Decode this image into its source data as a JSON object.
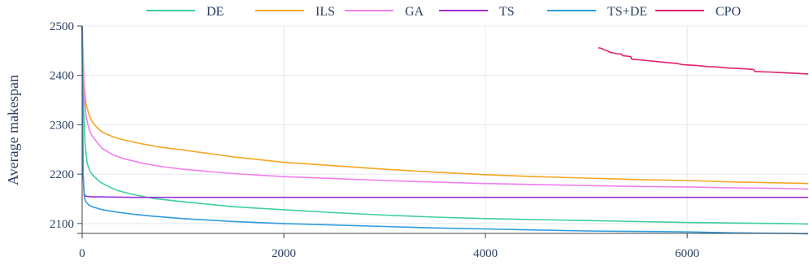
{
  "chart_data": {
    "type": "line",
    "title": "",
    "xlabel": "",
    "ylabel": "Average makespan",
    "xlim": [
      0,
      7200
    ],
    "ylim": [
      2080,
      2500
    ],
    "x_ticks": [
      0,
      2000,
      4000,
      6000
    ],
    "y_ticks": [
      2100,
      2200,
      2300,
      2400,
      2500
    ],
    "grid": true,
    "legend_position": "top",
    "series": [
      {
        "name": "DE",
        "color": "#3ecf9a",
        "x": [
          0,
          15,
          30,
          50,
          80,
          120,
          180,
          250,
          350,
          500,
          700,
          1000,
          1500,
          2000,
          2500,
          3000,
          3500,
          4000,
          4500,
          5000,
          5500,
          6000,
          6500,
          7000,
          7200
        ],
        "y": [
          2500,
          2330,
          2260,
          2222,
          2205,
          2195,
          2184,
          2176,
          2167,
          2159,
          2151,
          2144,
          2134,
          2128,
          2122,
          2117,
          2113,
          2110,
          2108,
          2106,
          2104,
          2102,
          2101,
          2100,
          2099
        ]
      },
      {
        "name": "ILS",
        "color": "#f5a623",
        "x": [
          0,
          20,
          40,
          70,
          100,
          150,
          200,
          300,
          400,
          600,
          800,
          1000,
          1500,
          2000,
          2500,
          3000,
          3500,
          4000,
          4500,
          5000,
          5500,
          6000,
          6500,
          7000,
          7200
        ],
        "y": [
          2500,
          2380,
          2340,
          2320,
          2306,
          2294,
          2285,
          2276,
          2270,
          2261,
          2254,
          2249,
          2235,
          2224,
          2217,
          2210,
          2204,
          2199,
          2195,
          2192,
          2189,
          2187,
          2184,
          2182,
          2181
        ]
      },
      {
        "name": "GA",
        "color": "#f07ff0",
        "x": [
          0,
          20,
          40,
          70,
          100,
          150,
          200,
          300,
          400,
          600,
          800,
          1000,
          1500,
          2000,
          2500,
          3000,
          3500,
          4000,
          4500,
          5000,
          5500,
          6000,
          6500,
          7000,
          7200
        ],
        "y": [
          2500,
          2360,
          2315,
          2290,
          2277,
          2264,
          2252,
          2240,
          2232,
          2222,
          2215,
          2210,
          2201,
          2195,
          2191,
          2187,
          2184,
          2181,
          2179,
          2177,
          2175,
          2174,
          2172,
          2171,
          2170
        ]
      },
      {
        "name": "TS",
        "color": "#9b30d9",
        "x": [
          0,
          5,
          10,
          20,
          30,
          50,
          100,
          200,
          500,
          1000,
          2000,
          3000,
          4000,
          5000,
          6000,
          7000,
          7200
        ],
        "y": [
          2500,
          2300,
          2200,
          2160,
          2156,
          2155,
          2154,
          2154,
          2153,
          2153,
          2153,
          2153,
          2153,
          2153,
          2153,
          2153,
          2153
        ]
      },
      {
        "name": "TS+DE",
        "color": "#2d9ce0",
        "x": [
          0,
          5,
          10,
          20,
          40,
          70,
          100,
          200,
          350,
          500,
          700,
          1000,
          1500,
          2000,
          2500,
          3000,
          3500,
          4000,
          4500,
          5000,
          5500,
          6000,
          6500,
          7000,
          7200
        ],
        "y": [
          2500,
          2350,
          2200,
          2155,
          2143,
          2137,
          2134,
          2128,
          2123,
          2119,
          2115,
          2110,
          2104,
          2100,
          2097,
          2094,
          2091,
          2089,
          2087,
          2085,
          2084,
          2083,
          2081,
          2080,
          2079
        ]
      },
      {
        "name": "CPO",
        "color": "#e0226e",
        "x": [
          5120,
          5160,
          5170,
          5210,
          5230,
          5280,
          5300,
          5350,
          5360,
          5440,
          5450,
          5600,
          5700,
          5800,
          5900,
          5950,
          6100,
          6200,
          6300,
          6400,
          6500,
          6600,
          6660,
          6670,
          6800,
          6900,
          7000,
          7100,
          7200
        ],
        "y": [
          2456,
          2454,
          2452,
          2450,
          2447,
          2445,
          2444,
          2443,
          2440,
          2438,
          2433,
          2430,
          2428,
          2426,
          2424,
          2422,
          2420,
          2418,
          2417,
          2415,
          2414,
          2413,
          2412,
          2408,
          2407,
          2406,
          2405,
          2404,
          2403
        ]
      }
    ]
  }
}
